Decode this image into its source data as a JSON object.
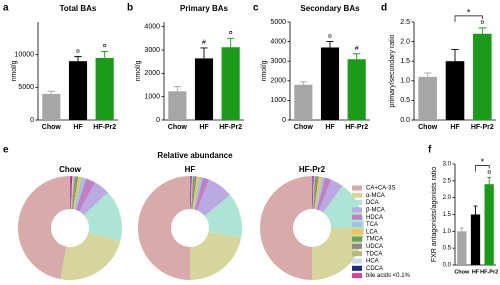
{
  "chart_data": [
    {
      "type": "bar",
      "panel": "a",
      "title": "Total BAs",
      "ylabel": "nmol/g",
      "categories": [
        "Chow",
        "HF",
        "HF-Pr2"
      ],
      "values": [
        4000,
        9000,
        9500
      ],
      "errors": [
        400,
        700,
        1000
      ],
      "colors": [
        "#a6a6a6",
        "#000000",
        "#1a9c1a"
      ],
      "annotations": [
        null,
        "¤",
        "¤"
      ],
      "ylim": [
        0,
        15000
      ],
      "yticks": [
        0,
        5000,
        10000
      ]
    },
    {
      "type": "bar",
      "panel": "b",
      "title": "Primary BAs",
      "ylabel": "nmol/g",
      "categories": [
        "Chow",
        "HF",
        "HF-Pr2"
      ],
      "values": [
        1230,
        2640,
        3120
      ],
      "errors": [
        200,
        450,
        380
      ],
      "colors": [
        "#a6a6a6",
        "#000000",
        "#1a9c1a"
      ],
      "annotations": [
        null,
        "#",
        "¤"
      ],
      "ylim": [
        0,
        4200
      ],
      "yticks": [
        0,
        1000,
        2000,
        3000,
        4000
      ]
    },
    {
      "type": "bar",
      "panel": "c",
      "title": "Secondary BAs",
      "ylabel": "nmol/g",
      "categories": [
        "Chow",
        "HF",
        "HF-Pr2"
      ],
      "values": [
        1800,
        3700,
        3100
      ],
      "errors": [
        150,
        300,
        280
      ],
      "colors": [
        "#a6a6a6",
        "#000000",
        "#1a9c1a"
      ],
      "annotations": [
        null,
        "¤",
        "#"
      ],
      "ylim": [
        0,
        5000
      ],
      "yticks": [
        0,
        1000,
        2000,
        3000,
        4000,
        5000
      ]
    },
    {
      "type": "bar",
      "panel": "d",
      "ylabel": "primary/secondary ratio",
      "categories": [
        "Chow",
        "HF",
        "HF-Pr2"
      ],
      "values": [
        1.1,
        1.5,
        2.2
      ],
      "errors": [
        0.1,
        0.3,
        0.15
      ],
      "colors": [
        "#a6a6a6",
        "#000000",
        "#1a9c1a"
      ],
      "annotations": [
        null,
        null,
        "¤"
      ],
      "bracket_label": "*",
      "ylim": [
        0,
        2.5
      ],
      "yticks": [
        {
          "value": 0,
          "label": "0.0"
        },
        0.5,
        {
          "value": 1,
          "label": "1.0"
        },
        1.5,
        {
          "value": 2,
          "label": "2.0"
        },
        2.5
      ]
    },
    {
      "type": "pie",
      "panel": "e",
      "title": "Relative abundance",
      "labels": [
        "CA+CA-3S",
        "α-MCA",
        "DCA",
        "β-MCA",
        "HDCA",
        "TCA",
        "LCA",
        "TMCA",
        "UDCA",
        "TDCA",
        "HCA",
        "CDCA",
        "bile acids <0.1%"
      ],
      "colors": [
        "#d9aaaa",
        "#d6d69c",
        "#aee4d4",
        "#bba9e2",
        "#c27fc4",
        "#9fc3e6",
        "#f2c25a",
        "#5fa35f",
        "#8a8a8a",
        "#b8b87a",
        "#c6dcf0",
        "#1c2a80",
        "#e23c9e"
      ],
      "pies": [
        {
          "name": "Chow",
          "values": [
            47,
            24,
            16,
            5,
            3,
            1.5,
            1,
            0.5,
            0.5,
            0.5,
            0.3,
            0.2,
            0.5
          ]
        },
        {
          "name": "HF",
          "values": [
            50,
            22,
            14,
            8,
            2,
            1,
            1,
            0.5,
            0.5,
            0.3,
            0.2,
            0.2,
            0.3
          ]
        },
        {
          "name": "HF-Pr2",
          "values": [
            50,
            25,
            15,
            4,
            2,
            1,
            1,
            0.5,
            0.5,
            0.3,
            0.2,
            0.2,
            0.3
          ]
        }
      ]
    },
    {
      "type": "bar",
      "panel": "f",
      "ylabel": "FXR antagonists/agonists ratio",
      "categories": [
        "Chow",
        "HF",
        "HF-Pr2"
      ],
      "values": [
        1.0,
        1.5,
        2.4
      ],
      "errors": [
        0.1,
        0.25,
        0.2
      ],
      "colors": [
        "#a6a6a6",
        "#000000",
        "#1a9c1a"
      ],
      "annotations": [
        null,
        null,
        "¤"
      ],
      "bracket_label": "*",
      "ylim": [
        0,
        3
      ],
      "yticks": [
        {
          "value": 0,
          "label": "0.0"
        },
        0.5,
        {
          "value": 1,
          "label": "1.0"
        },
        1.5,
        {
          "value": 2,
          "label": "2.0"
        },
        2.5,
        {
          "value": 3,
          "label": "3.0"
        }
      ]
    }
  ]
}
